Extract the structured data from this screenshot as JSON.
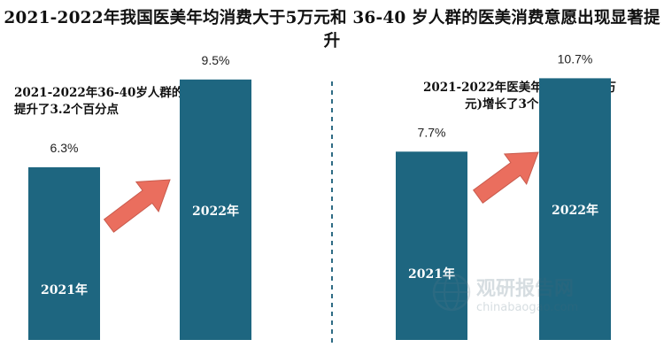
{
  "title": "2021-2022年我国医美年均消费大于5万元和 36-40 岁人群的医美消费意愿出现显著提升",
  "colors": {
    "bar": "#1e6680",
    "arrow": "#ea6e5e",
    "divider": "#2e6b84"
  },
  "chart_data": [
    {
      "type": "bar",
      "title": "2021-2022年36-40岁人群的消费占比提升了3.2个百分点",
      "categories": [
        "2021年",
        "2022年"
      ],
      "values": [
        6.3,
        9.5
      ],
      "value_labels": [
        "6.3%",
        "9.5%"
      ],
      "unit": "%",
      "ylim": [
        0,
        12.4
      ],
      "grid": false,
      "legend": "none"
    },
    {
      "type": "bar",
      "title": "2021-2022年医美年消费(大于5万元)增长了3个百分点",
      "categories": [
        "2021年",
        "2022年"
      ],
      "values": [
        7.7,
        10.7
      ],
      "value_labels": [
        "7.7%",
        "10.7%"
      ],
      "unit": "%",
      "ylim": [
        0,
        13.9
      ],
      "grid": false,
      "legend": "none"
    }
  ],
  "watermark": {
    "name": "观研报告网",
    "domain": "chinabaogao.com",
    "icon": "globe-logo-icon"
  }
}
